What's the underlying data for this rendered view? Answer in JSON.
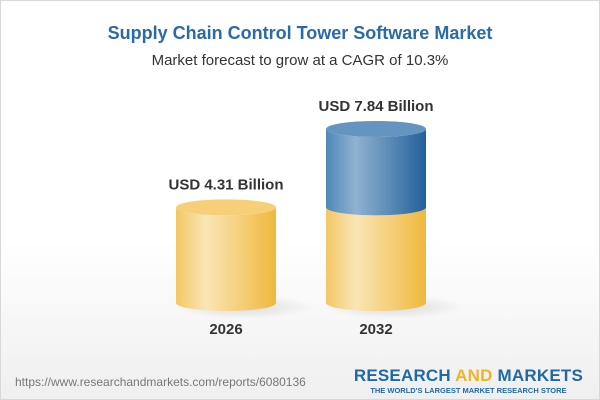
{
  "title": "Supply Chain Control Tower Software Market",
  "subtitle": "Market forecast to grow at a CAGR of 10.3%",
  "chart_data": {
    "type": "bar",
    "style": "3d-cylinder",
    "categories": [
      "2026",
      "2032"
    ],
    "values": [
      4.31,
      7.84
    ],
    "data_labels": [
      "USD 4.31 Billion",
      "USD 7.84 Billion"
    ],
    "unit": "USD Billion",
    "colors": {
      "base": "#f2c45a",
      "growth": "#3f7fb5"
    }
  },
  "footer": {
    "url": "https://www.researchandmarkets.com/reports/6080136",
    "logo_part1": "RESEARCH ",
    "logo_part2": "AND",
    "logo_part3": " MARKETS",
    "tagline": "THE WORLD'S LARGEST MARKET RESEARCH STORE"
  }
}
